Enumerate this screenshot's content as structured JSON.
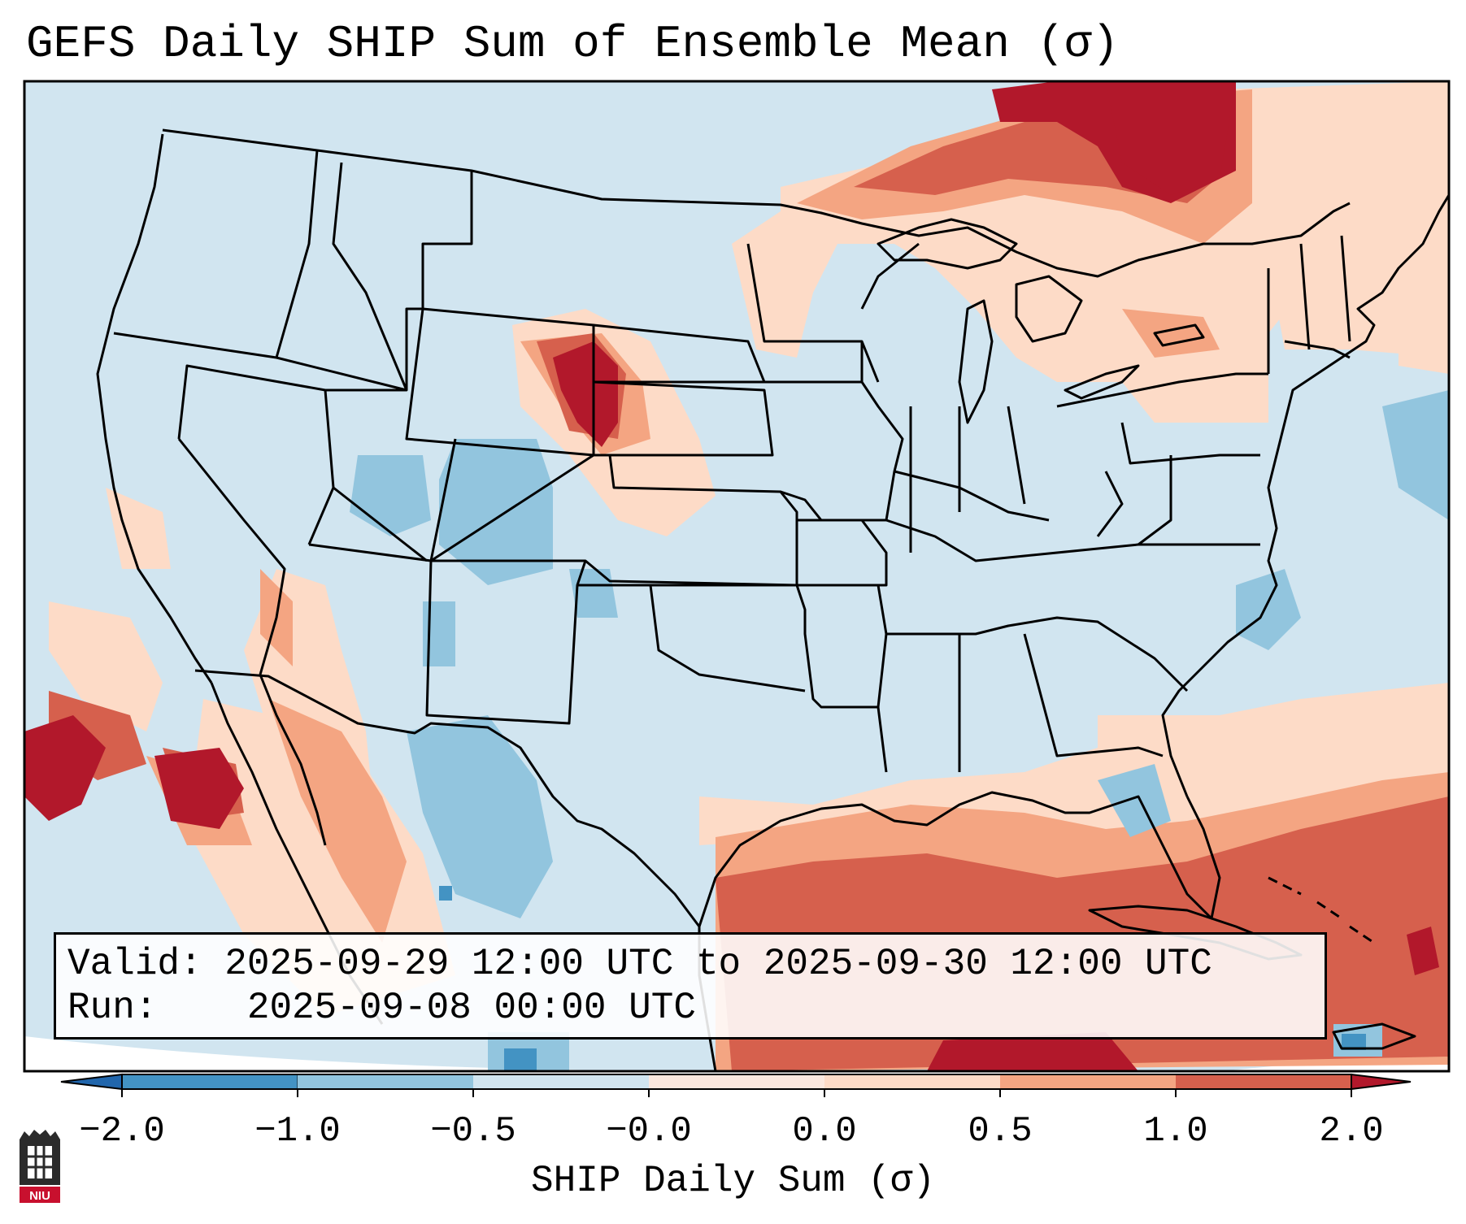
{
  "title": "GEFS Daily SHIP Sum of Ensemble Mean (σ)",
  "info": {
    "valid_label": "Valid:",
    "valid_value": "2025-09-29 12:00 UTC to 2025-09-30 12:00 UTC",
    "run_label": "Run:",
    "run_value": "2025-09-08 00:00 UTC"
  },
  "colorbar": {
    "label": "SHIP Daily Sum (σ)",
    "ticks": [
      "−2.0",
      "−1.0",
      "−0.5",
      "−0.0",
      "0.0",
      "0.5",
      "1.0",
      "2.0"
    ],
    "colors": [
      "#2166ac",
      "#4393c3",
      "#92c5de",
      "#d1e5f0",
      "#fbe8df",
      "#fddbc7",
      "#f4a582",
      "#d6604d",
      "#b2182b"
    ],
    "extend": "both"
  },
  "logo": {
    "text": "NIU"
  },
  "colors": {
    "background": "#d1e5f0",
    "frame": "#000000",
    "border_lines": "#000000"
  }
}
